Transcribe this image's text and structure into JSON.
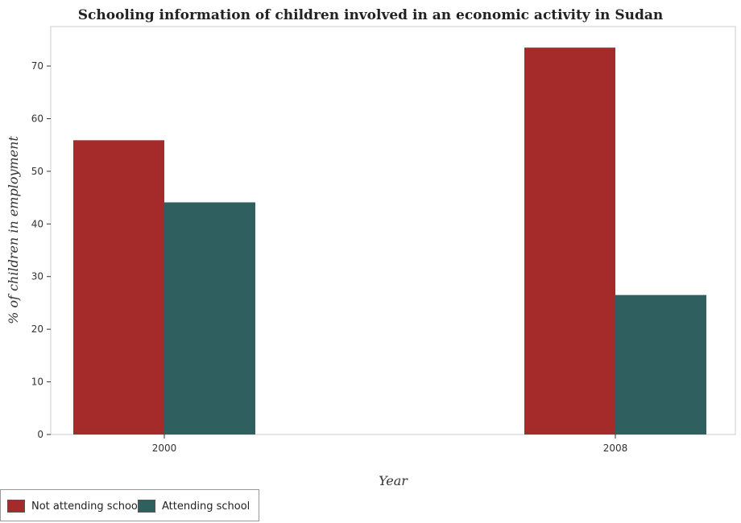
{
  "chart_data": {
    "type": "bar",
    "title": "Schooling information of children involved in an economic activity in Sudan",
    "xlabel": "Year",
    "ylabel": "% of children in employment",
    "categories": [
      "2000",
      "2008"
    ],
    "series": [
      {
        "name": "Not attending school",
        "color": "#a52a2a",
        "values": [
          55.9,
          73.5
        ]
      },
      {
        "name": "Attending school",
        "color": "#2f5f5f",
        "values": [
          44.1,
          26.5
        ]
      }
    ],
    "ylim": [
      0,
      77.5
    ],
    "yticks": [
      "0",
      "10",
      "20",
      "30",
      "40",
      "50",
      "60",
      "70"
    ],
    "grid": false,
    "legend_position": "bottom-left"
  }
}
